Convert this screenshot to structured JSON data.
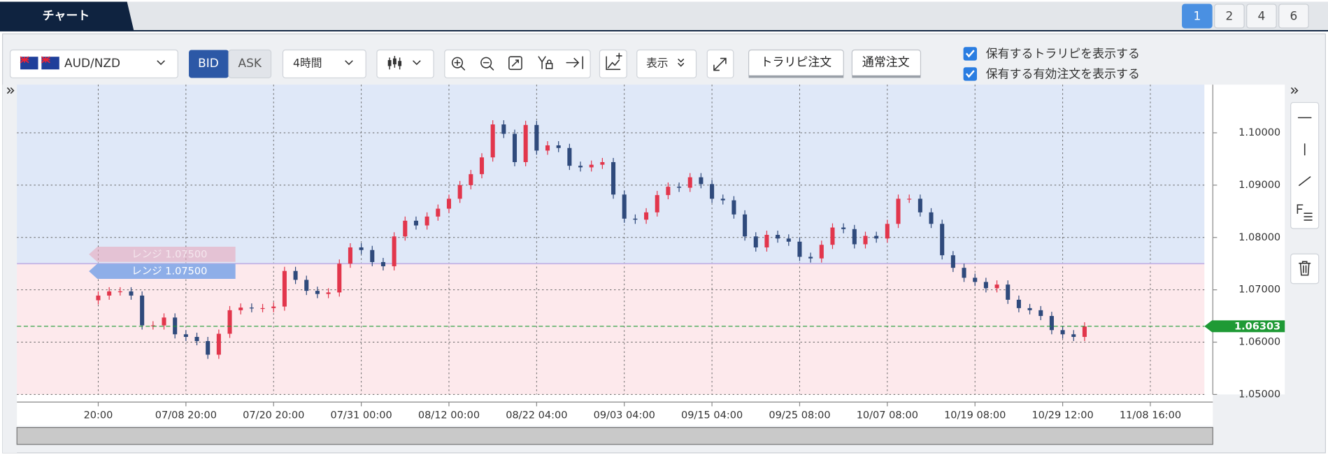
{
  "tabs": {
    "title": "チャート",
    "pages": [
      {
        "label": "1",
        "active": true
      },
      {
        "label": "2",
        "active": false
      },
      {
        "label": "4",
        "active": false
      },
      {
        "label": "6",
        "active": false
      }
    ]
  },
  "toolbar": {
    "symbol": "AUD/NZD",
    "bid": "BID",
    "ask": "ASK",
    "interval": "4時間",
    "display": "表示",
    "trarip_order": "トラリピ注文",
    "normal_order": "通常注文",
    "checkboxes": [
      {
        "label": "保有するトラリピを表示する",
        "checked": true
      },
      {
        "label": "保有する有効注文を表示する",
        "checked": true
      }
    ]
  },
  "chart_data": {
    "type": "candlestick",
    "categories": [
      "20:00",
      null,
      null,
      null,
      null,
      null,
      null,
      null,
      "07/08 20:00",
      null,
      null,
      null,
      null,
      null,
      null,
      null,
      "07/20 20:00",
      null,
      null,
      null,
      null,
      null,
      null,
      null,
      "07/31 00:00",
      null,
      null,
      null,
      null,
      null,
      null,
      null,
      "08/12 00:00",
      null,
      null,
      null,
      null,
      null,
      null,
      null,
      "08/22 04:00",
      null,
      null,
      null,
      null,
      null,
      null,
      null,
      "09/03 04:00",
      null,
      null,
      null,
      null,
      null,
      null,
      null,
      "09/15 04:00",
      null,
      null,
      null,
      null,
      null,
      null,
      null,
      "09/25 08:00",
      null,
      null,
      null,
      null,
      null,
      null,
      null,
      "10/07 08:00",
      null,
      null,
      null,
      null,
      null,
      null,
      null,
      "10/19 08:00",
      null,
      null,
      null,
      null,
      null,
      null,
      null,
      "10/29 12:00",
      null,
      null,
      null,
      null,
      null,
      null,
      null,
      "11/08 16:00",
      null,
      null,
      null,
      null
    ],
    "open": [
      1.068,
      1.0689,
      1.0697,
      1.0697,
      1.0689,
      1.0632,
      1.0632,
      1.0647,
      1.0615,
      1.061,
      1.0602,
      1.0576,
      1.0616,
      1.0661,
      1.0666,
      1.0665,
      1.0665,
      1.0668,
      1.0736,
      1.0719,
      1.0698,
      1.0692,
      1.0695,
      1.075,
      1.0781,
      1.0776,
      1.0753,
      1.0745,
      1.0802,
      1.0832,
      1.0823,
      1.084,
      1.0855,
      1.0874,
      1.09,
      1.0921,
      1.0953,
      1.1016,
      1.0998,
      1.0944,
      1.1015,
      1.0966,
      1.0976,
      1.0971,
      1.0937,
      1.0934,
      1.0939,
      1.0944,
      1.0882,
      1.0836,
      1.0834,
      1.0848,
      1.0881,
      1.0897,
      1.0895,
      1.0915,
      1.0902,
      1.0874,
      1.0871,
      1.0844,
      1.0802,
      1.0781,
      1.0805,
      1.0798,
      1.0792,
      1.0763,
      1.076,
      1.0786,
      1.0819,
      1.0816,
      1.0787,
      1.0803,
      1.0798,
      1.0826,
      1.0874,
      1.0874,
      1.0848,
      1.0826,
      1.0766,
      1.0742,
      1.0723,
      1.0715,
      1.0703,
      1.071,
      1.0681,
      1.0665,
      1.0661,
      1.065,
      1.0623,
      1.0615,
      1.061,
      null,
      null,
      null,
      null,
      null,
      null,
      null,
      null,
      null,
      null
    ],
    "high": [
      1.0697,
      1.0705,
      1.0705,
      1.0705,
      1.0697,
      1.064,
      1.0655,
      1.0655,
      1.0623,
      1.0618,
      1.061,
      1.0624,
      1.0669,
      1.0674,
      1.0674,
      1.0673,
      1.0676,
      1.0744,
      1.0744,
      1.0727,
      1.0706,
      1.0703,
      1.0758,
      1.0789,
      1.0789,
      1.0784,
      1.0761,
      1.081,
      1.084,
      1.084,
      1.0848,
      1.0863,
      1.0882,
      1.0908,
      1.0929,
      1.0961,
      1.1024,
      1.1024,
      1.1006,
      1.1023,
      1.1023,
      1.0984,
      1.0984,
      1.0979,
      1.0945,
      1.0947,
      1.0952,
      1.0952,
      1.089,
      1.0844,
      1.0856,
      1.0889,
      1.0905,
      1.0905,
      1.0923,
      1.0923,
      1.091,
      1.0882,
      1.0879,
      1.0852,
      1.081,
      1.0813,
      1.0813,
      1.0806,
      1.08,
      1.0771,
      1.0794,
      1.0827,
      1.0827,
      1.0824,
      1.0811,
      1.0811,
      1.0834,
      1.0882,
      1.0882,
      1.0882,
      1.0856,
      1.0834,
      1.0774,
      1.075,
      1.0731,
      1.0723,
      1.0718,
      1.0718,
      1.0689,
      1.0673,
      1.0669,
      1.0658,
      1.0631,
      1.0623,
      1.0638,
      null,
      null,
      null,
      null,
      null,
      null,
      null,
      null,
      null,
      null
    ],
    "low": [
      1.0672,
      1.0681,
      1.0689,
      1.0681,
      1.0624,
      1.0624,
      1.0624,
      1.0607,
      1.0602,
      1.0594,
      1.0568,
      1.0568,
      1.0608,
      1.0653,
      1.0657,
      1.0657,
      1.0657,
      1.066,
      1.0711,
      1.069,
      1.0684,
      1.0684,
      1.0687,
      1.0742,
      1.0768,
      1.0745,
      1.0737,
      1.0737,
      1.0794,
      1.0815,
      1.0815,
      1.0832,
      1.0847,
      1.0866,
      1.0892,
      1.0913,
      1.0945,
      1.099,
      1.0936,
      1.0936,
      1.0958,
      1.0958,
      1.0963,
      1.0929,
      1.0926,
      1.0926,
      1.0931,
      1.0874,
      1.0828,
      1.0826,
      1.0826,
      1.084,
      1.0873,
      1.0887,
      1.0887,
      1.0894,
      1.0866,
      1.0863,
      1.0836,
      1.0794,
      1.0773,
      1.0773,
      1.079,
      1.0784,
      1.0755,
      1.0752,
      1.0752,
      1.0778,
      1.0808,
      1.0779,
      1.0779,
      1.079,
      1.079,
      1.0818,
      1.0866,
      1.084,
      1.0818,
      1.0758,
      1.0734,
      1.0715,
      1.0707,
      1.0695,
      1.0695,
      1.0673,
      1.0657,
      1.0653,
      1.0642,
      1.0615,
      1.0607,
      1.0602,
      1.0602,
      null,
      null,
      null,
      null,
      null,
      null,
      null,
      null,
      null,
      null
    ],
    "close": [
      1.0689,
      1.0697,
      1.0697,
      1.0689,
      1.0632,
      1.0632,
      1.0647,
      1.0615,
      1.061,
      1.0602,
      1.0576,
      1.0616,
      1.0661,
      1.0666,
      1.0665,
      1.0665,
      1.0668,
      1.0736,
      1.0719,
      1.0698,
      1.0692,
      1.0695,
      1.075,
      1.0781,
      1.0776,
      1.0753,
      1.0745,
      1.0802,
      1.0832,
      1.0823,
      1.084,
      1.0855,
      1.0874,
      1.09,
      1.0921,
      1.0953,
      1.1016,
      1.0998,
      1.0944,
      1.1015,
      1.0966,
      1.0976,
      1.0971,
      1.0937,
      1.0934,
      1.0939,
      1.0944,
      1.0882,
      1.0836,
      1.0834,
      1.0848,
      1.0881,
      1.0897,
      1.0895,
      1.0915,
      1.0902,
      1.0874,
      1.0871,
      1.0844,
      1.0802,
      1.0781,
      1.0805,
      1.0798,
      1.0792,
      1.0763,
      1.076,
      1.0786,
      1.0819,
      1.0816,
      1.0787,
      1.0803,
      1.0798,
      1.0826,
      1.0874,
      1.0874,
      1.0848,
      1.0826,
      1.0766,
      1.0742,
      1.0723,
      1.0715,
      1.0703,
      1.071,
      1.0681,
      1.0665,
      1.0661,
      1.065,
      1.0623,
      1.0615,
      1.061,
      1.063,
      null,
      null,
      null,
      null,
      null,
      null,
      null,
      null,
      null,
      null
    ],
    "up_color": "#e2364c",
    "down_color": "#2f4a7c",
    "ylim": [
      1.05,
      1.1092
    ],
    "yticks": [
      {
        "value": 1.05,
        "label": "1.05000"
      },
      {
        "value": 1.06,
        "label": "1.06000"
      },
      {
        "value": 1.07,
        "label": "1.07000"
      },
      {
        "value": 1.08,
        "label": "1.08000"
      },
      {
        "value": 1.09,
        "label": "1.09000"
      },
      {
        "value": 1.1,
        "label": "1.10000"
      }
    ],
    "grid": true,
    "current_price": 1.06303,
    "current_color": "#1f9a35",
    "range_line": {
      "value": 1.075,
      "label": "レンジ 1.07500"
    }
  }
}
